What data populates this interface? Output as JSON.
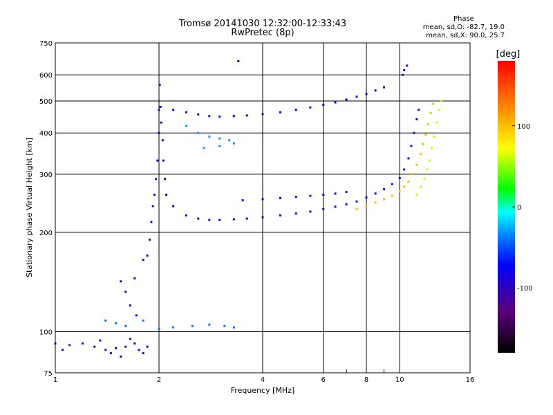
{
  "header": {
    "title_line1": "Tromsø 20141030 12:32:00-12:33:43",
    "title_line2": "RwPretec (8p)"
  },
  "stats": {
    "heading": "Phase",
    "line_o": "mean, sd,O: -82.7, 19.0",
    "line_x": "mean, sd,X:  90.0, 25.7"
  },
  "chart_data": {
    "type": "scatter",
    "xlabel": "Frequency [MHz]",
    "ylabel": "Stationary phase Virtual Height [km]",
    "x_scale": "log",
    "y_scale": "log",
    "xlim": [
      1,
      16
    ],
    "ylim": [
      75,
      750
    ],
    "x_ticks": [
      1,
      2,
      4,
      6,
      8,
      10,
      16
    ],
    "x_tick_labels": [
      "1",
      "2",
      "4",
      "6",
      "8",
      "10",
      "16"
    ],
    "x_minor_ticks": [
      7,
      9
    ],
    "y_ticks": [
      75,
      100,
      200,
      300,
      400,
      500,
      600,
      750
    ],
    "y_tick_labels": [
      "75",
      "100",
      "200",
      "300",
      "400",
      "500",
      "600",
      "750"
    ],
    "grid": true,
    "colorbar": {
      "label": "[deg]",
      "range": [
        -180,
        180
      ],
      "ticks": [
        100,
        0,
        -100
      ],
      "tick_labels": [
        "100",
        "0",
        "-100"
      ]
    },
    "traces": [
      {
        "name": "",
        "color_deg": -100,
        "points": [
          [
            1.0,
            92
          ],
          [
            1.05,
            88
          ],
          [
            1.1,
            91
          ],
          [
            1.2,
            92
          ],
          [
            1.3,
            90
          ],
          [
            1.35,
            94
          ],
          [
            1.4,
            88
          ],
          [
            1.45,
            86
          ],
          [
            1.5,
            89
          ],
          [
            1.55,
            84
          ],
          [
            1.6,
            90
          ],
          [
            1.65,
            95
          ],
          [
            1.7,
            92
          ],
          [
            1.75,
            88
          ],
          [
            1.8,
            86
          ],
          [
            1.85,
            90
          ]
        ]
      },
      {
        "name": "",
        "color_deg": -95,
        "points": [
          [
            1.55,
            142
          ],
          [
            1.6,
            132
          ],
          [
            1.65,
            120
          ],
          [
            1.7,
            145
          ],
          [
            1.72,
            112
          ],
          [
            1.8,
            165
          ],
          [
            1.85,
            170
          ],
          [
            1.88,
            190
          ],
          [
            1.9,
            215
          ],
          [
            1.92,
            240
          ],
          [
            1.94,
            260
          ],
          [
            1.96,
            290
          ],
          [
            1.98,
            330
          ],
          [
            2.0,
            400
          ],
          [
            2.0,
            470
          ],
          [
            2.01,
            560
          ],
          [
            2.02,
            480
          ],
          [
            2.03,
            430
          ],
          [
            2.05,
            380
          ],
          [
            2.06,
            330
          ],
          [
            2.08,
            290
          ],
          [
            2.1,
            260
          ]
        ]
      },
      {
        "name": "",
        "color_deg": -90,
        "points": [
          [
            2.2,
            240
          ],
          [
            2.4,
            225
          ],
          [
            2.6,
            220
          ],
          [
            2.8,
            218
          ],
          [
            3.0,
            218
          ],
          [
            3.3,
            219
          ],
          [
            3.6,
            220
          ],
          [
            4.0,
            222
          ],
          [
            4.5,
            225
          ],
          [
            5.0,
            228
          ],
          [
            5.5,
            231
          ],
          [
            6.0,
            235
          ],
          [
            6.5,
            239
          ],
          [
            7.0,
            243
          ],
          [
            7.5,
            248
          ],
          [
            8.0,
            255
          ],
          [
            8.5,
            262
          ],
          [
            9.0,
            270
          ],
          [
            9.5,
            280
          ],
          [
            10.0,
            292
          ],
          [
            10.3,
            310
          ],
          [
            10.6,
            335
          ],
          [
            10.8,
            365
          ],
          [
            11.0,
            400
          ],
          [
            11.2,
            440
          ],
          [
            11.35,
            470
          ]
        ]
      },
      {
        "name": "",
        "color_deg": -80,
        "points": [
          [
            3.5,
            250
          ],
          [
            4.0,
            252
          ],
          [
            4.5,
            254
          ],
          [
            5.0,
            256
          ],
          [
            5.5,
            258
          ],
          [
            6.0,
            260
          ],
          [
            6.5,
            262
          ],
          [
            7.0,
            265
          ]
        ]
      },
      {
        "name": "",
        "color_deg": 100,
        "points": [
          [
            7.5,
            235
          ],
          [
            8.0,
            240
          ],
          [
            8.5,
            246
          ],
          [
            9.0,
            252
          ],
          [
            9.5,
            258
          ],
          [
            10.0,
            266
          ],
          [
            10.3,
            275
          ],
          [
            10.6,
            285
          ],
          [
            10.9,
            300
          ],
          [
            11.2,
            320
          ],
          [
            11.5,
            345
          ],
          [
            11.7,
            370
          ],
          [
            11.9,
            395
          ],
          [
            12.1,
            425
          ],
          [
            12.3,
            460
          ],
          [
            12.5,
            490
          ]
        ]
      },
      {
        "name": "",
        "color_deg": 60,
        "points": [
          [
            11.2,
            260
          ],
          [
            11.5,
            275
          ],
          [
            11.8,
            290
          ],
          [
            12.0,
            310
          ],
          [
            12.2,
            330
          ],
          [
            12.4,
            360
          ],
          [
            12.6,
            390
          ],
          [
            12.8,
            430
          ],
          [
            13.0,
            470
          ],
          [
            13.2,
            500
          ]
        ]
      },
      {
        "name": "",
        "color_deg": -70,
        "points": [
          [
            2.2,
            470
          ],
          [
            2.4,
            462
          ],
          [
            2.6,
            455
          ],
          [
            2.8,
            450
          ],
          [
            3.0,
            448
          ],
          [
            3.3,
            450
          ],
          [
            3.6,
            452
          ],
          [
            4.0,
            456
          ],
          [
            4.5,
            462
          ],
          [
            5.0,
            470
          ],
          [
            5.5,
            478
          ],
          [
            6.0,
            487
          ],
          [
            6.5,
            495
          ],
          [
            7.0,
            505
          ],
          [
            7.5,
            515
          ],
          [
            8.0,
            525
          ],
          [
            8.5,
            538
          ],
          [
            9.0,
            550
          ]
        ]
      },
      {
        "name": "",
        "color_deg": -30,
        "points": [
          [
            2.4,
            420
          ],
          [
            2.6,
            400
          ],
          [
            2.8,
            390
          ],
          [
            3.0,
            385
          ],
          [
            3.2,
            380
          ],
          [
            2.7,
            360
          ],
          [
            3.0,
            365
          ],
          [
            3.3,
            372
          ]
        ]
      },
      {
        "name": "",
        "color_deg": -40,
        "points": [
          [
            1.4,
            108
          ],
          [
            1.5,
            106
          ],
          [
            1.6,
            104
          ],
          [
            1.8,
            108
          ],
          [
            2.0,
            102
          ],
          [
            2.2,
            103
          ],
          [
            2.5,
            104
          ],
          [
            2.8,
            105
          ],
          [
            3.1,
            104
          ],
          [
            3.3,
            103
          ]
        ]
      },
      {
        "name": "",
        "color_deg": -110,
        "points": [
          [
            10.2,
            600
          ],
          [
            10.5,
            640
          ],
          [
            10.3,
            620
          ],
          [
            3.4,
            660
          ]
        ]
      }
    ]
  }
}
